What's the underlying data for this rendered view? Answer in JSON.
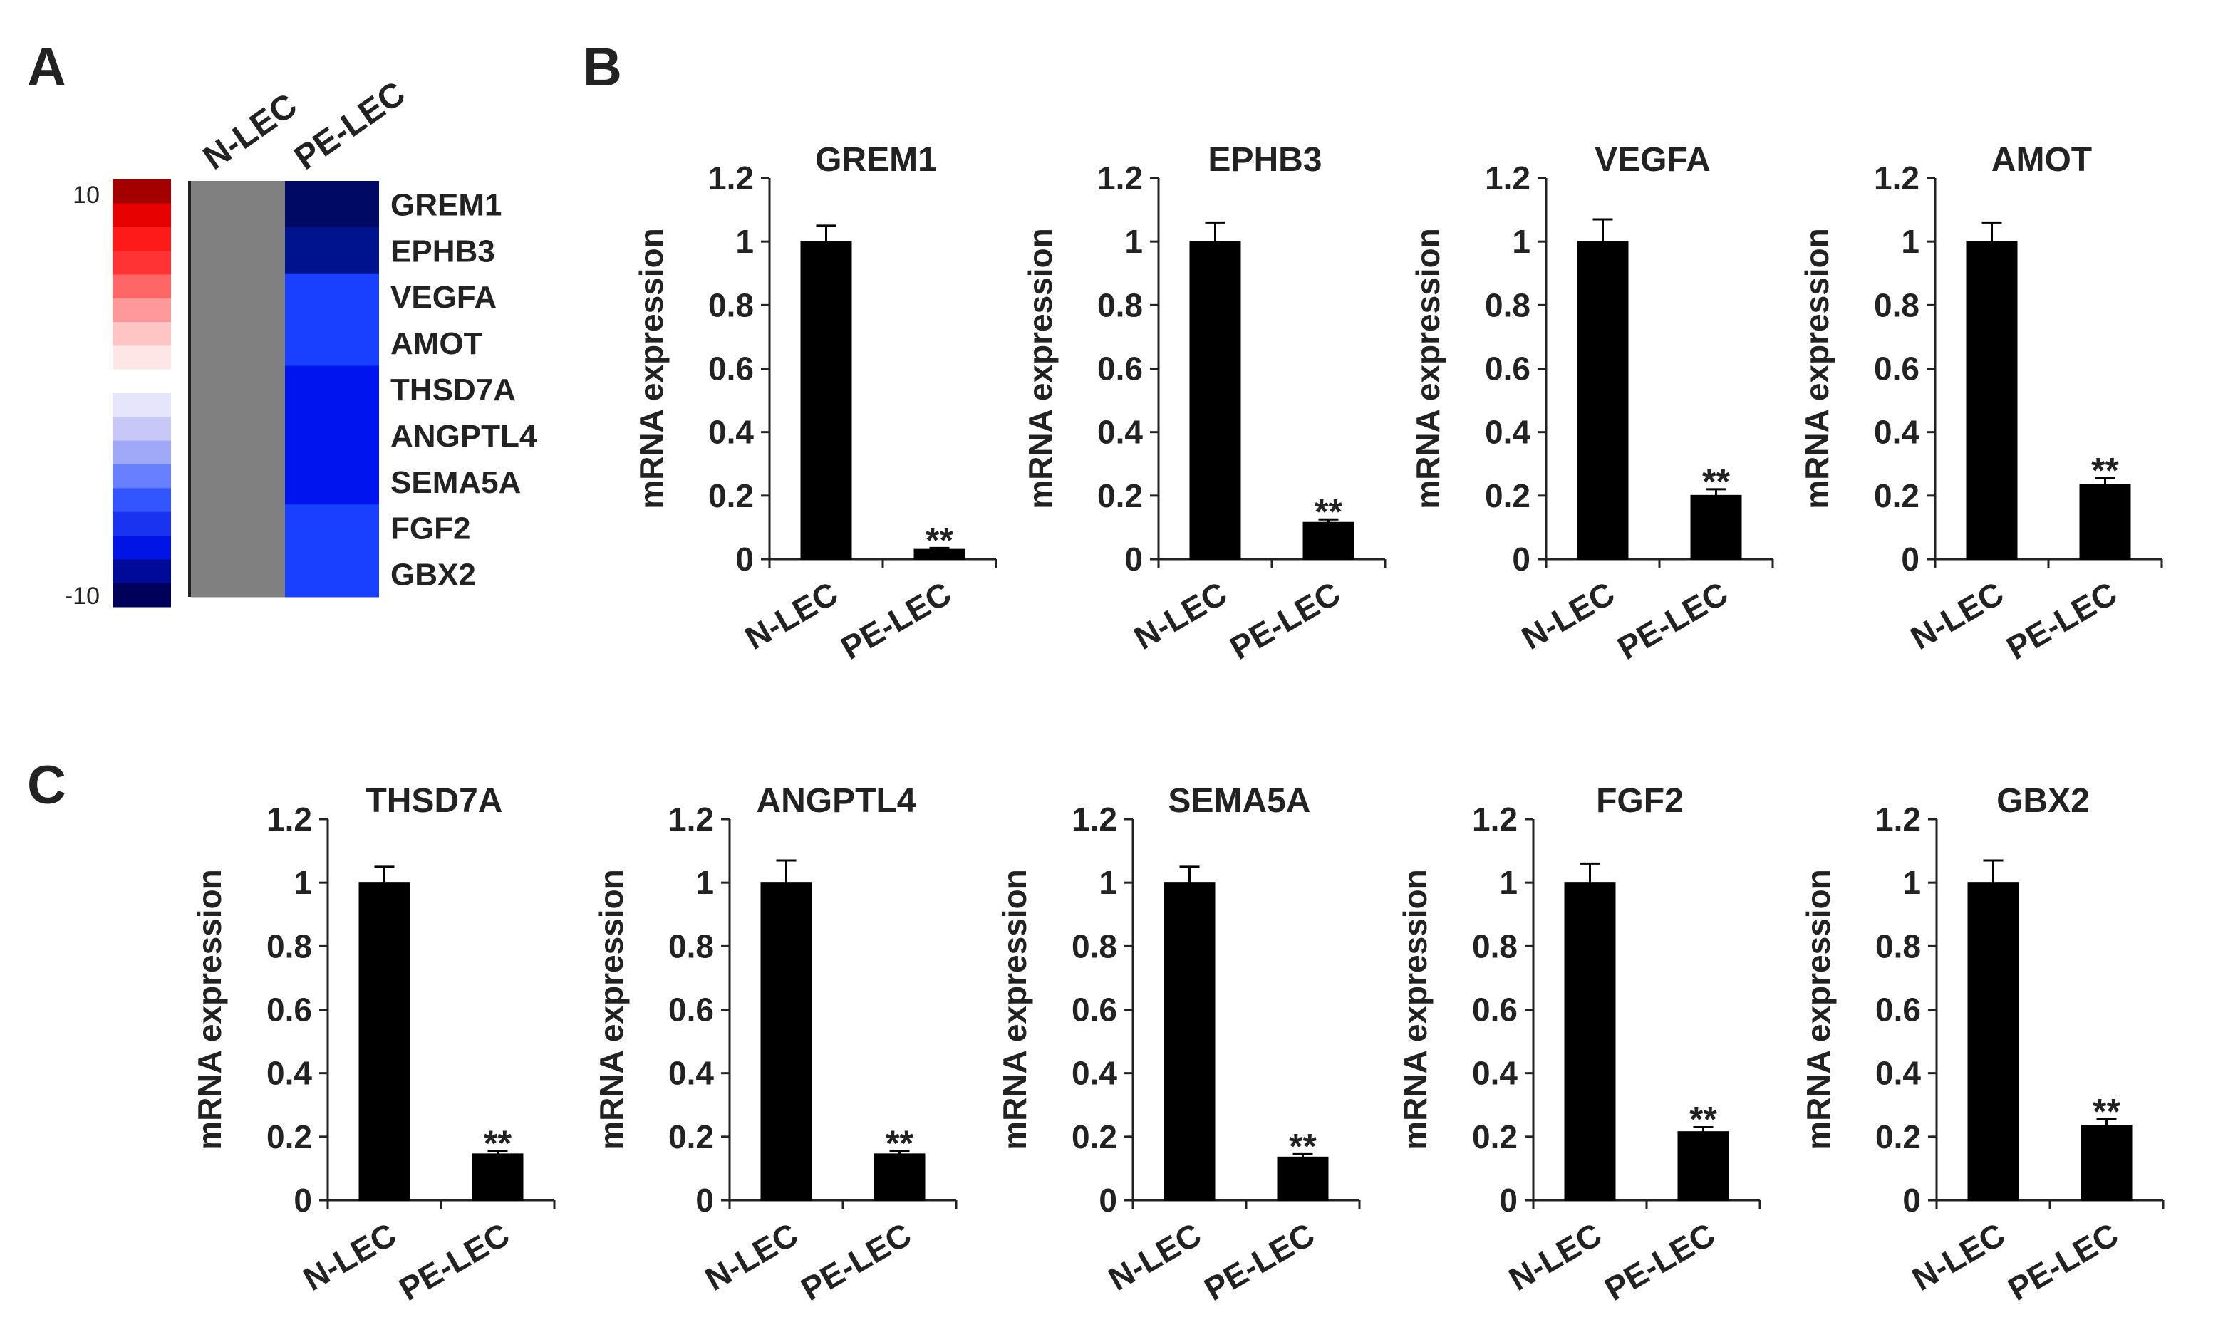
{
  "panel_labels": {
    "a": "A",
    "b": "B",
    "c": "C"
  },
  "heatmap": {
    "columns": [
      "N-LEC",
      "PE-LEC"
    ],
    "genes": [
      "GREM1",
      "EPHB3",
      "VEGFA",
      "AMOT",
      "THSD7A",
      "ANGPTL4",
      "SEMA5A",
      "FGF2",
      "GBX2"
    ],
    "n_lec_color": "#808080",
    "pe_lec_colors": [
      "#000a64",
      "#00138f",
      "#1a40ff",
      "#1a40ff",
      "#0014f0",
      "#0014f0",
      "#0014f0",
      "#1a40ff",
      "#1a40ff"
    ],
    "legend": {
      "max_label": "10",
      "min_label": "-10",
      "colors": [
        "#a50000",
        "#e60000",
        "#ff1a1a",
        "#ff3333",
        "#ff6666",
        "#ff9999",
        "#ffc4c4",
        "#ffe6e6",
        "#ffffff",
        "#e4e4fa",
        "#c8c8f8",
        "#a0a8f8",
        "#6680ff",
        "#3355ff",
        "#1a33f0",
        "#0014e6",
        "#000a99",
        "#00005a"
      ]
    }
  },
  "chart_data": [
    {
      "type": "bar",
      "panel": "B",
      "title": "GREM1",
      "categories": [
        "N-LEC",
        "PE-LEC"
      ],
      "values": [
        1.0,
        0.03
      ],
      "errors": [
        0.05,
        0.005
      ],
      "significance": [
        "",
        "**"
      ],
      "ylabel": "mRNA expression",
      "ylim": [
        0,
        1.2
      ],
      "yticks": [
        "0",
        "0.2",
        "0.4",
        "0.6",
        "0.8",
        "1",
        "1.2"
      ],
      "bar_color": "#000000"
    },
    {
      "type": "bar",
      "panel": "B",
      "title": "EPHB3",
      "categories": [
        "N-LEC",
        "PE-LEC"
      ],
      "values": [
        1.0,
        0.115
      ],
      "errors": [
        0.06,
        0.01
      ],
      "significance": [
        "",
        "**"
      ],
      "ylabel": "mRNA expression",
      "ylim": [
        0,
        1.2
      ],
      "yticks": [
        "0",
        "0.2",
        "0.4",
        "0.6",
        "0.8",
        "1",
        "1.2"
      ],
      "bar_color": "#000000"
    },
    {
      "type": "bar",
      "panel": "B",
      "title": "VEGFA",
      "categories": [
        "N-LEC",
        "PE-LEC"
      ],
      "values": [
        1.0,
        0.2
      ],
      "errors": [
        0.07,
        0.02
      ],
      "significance": [
        "",
        "**"
      ],
      "ylabel": "mRNA expression",
      "ylim": [
        0,
        1.2
      ],
      "yticks": [
        "0",
        "0.2",
        "0.4",
        "0.6",
        "0.8",
        "1",
        "1.2"
      ],
      "bar_color": "#000000"
    },
    {
      "type": "bar",
      "panel": "B",
      "title": "AMOT",
      "categories": [
        "N-LEC",
        "PE-LEC"
      ],
      "values": [
        1.0,
        0.235
      ],
      "errors": [
        0.06,
        0.02
      ],
      "significance": [
        "",
        "**"
      ],
      "ylabel": "mRNA expression",
      "ylim": [
        0,
        1.2
      ],
      "yticks": [
        "0",
        "0.2",
        "0.4",
        "0.6",
        "0.8",
        "1",
        "1.2"
      ],
      "bar_color": "#000000"
    },
    {
      "type": "bar",
      "panel": "C",
      "title": "THSD7A",
      "categories": [
        "N-LEC",
        "PE-LEC"
      ],
      "values": [
        1.0,
        0.145
      ],
      "errors": [
        0.05,
        0.01
      ],
      "significance": [
        "",
        "**"
      ],
      "ylabel": "mRNA expression",
      "ylim": [
        0,
        1.2
      ],
      "yticks": [
        "0",
        "0.2",
        "0.4",
        "0.6",
        "0.8",
        "1",
        "1.2"
      ],
      "bar_color": "#000000"
    },
    {
      "type": "bar",
      "panel": "C",
      "title": "ANGPTL4",
      "categories": [
        "N-LEC",
        "PE-LEC"
      ],
      "values": [
        1.0,
        0.145
      ],
      "errors": [
        0.07,
        0.01
      ],
      "significance": [
        "",
        "**"
      ],
      "ylabel": "mRNA expression",
      "ylim": [
        0,
        1.2
      ],
      "yticks": [
        "0",
        "0.2",
        "0.4",
        "0.6",
        "0.8",
        "1",
        "1.2"
      ],
      "bar_color": "#000000"
    },
    {
      "type": "bar",
      "panel": "C",
      "title": "SEMA5A",
      "categories": [
        "N-LEC",
        "PE-LEC"
      ],
      "values": [
        1.0,
        0.135
      ],
      "errors": [
        0.05,
        0.01
      ],
      "significance": [
        "",
        "**"
      ],
      "ylabel": "mRNA expression",
      "ylim": [
        0,
        1.2
      ],
      "yticks": [
        "0",
        "0.2",
        "0.4",
        "0.6",
        "0.8",
        "1",
        "1.2"
      ],
      "bar_color": "#000000"
    },
    {
      "type": "bar",
      "panel": "C",
      "title": "FGF2",
      "categories": [
        "N-LEC",
        "PE-LEC"
      ],
      "values": [
        1.0,
        0.215
      ],
      "errors": [
        0.06,
        0.015
      ],
      "significance": [
        "",
        "**"
      ],
      "ylabel": "mRNA expression",
      "ylim": [
        0,
        1.2
      ],
      "yticks": [
        "0",
        "0.2",
        "0.4",
        "0.6",
        "0.8",
        "1",
        "1.2"
      ],
      "bar_color": "#000000"
    },
    {
      "type": "bar",
      "panel": "C",
      "title": "GBX2",
      "categories": [
        "N-LEC",
        "PE-LEC"
      ],
      "values": [
        1.0,
        0.235
      ],
      "errors": [
        0.07,
        0.02
      ],
      "significance": [
        "",
        "**"
      ],
      "ylabel": "mRNA expression",
      "ylim": [
        0,
        1.2
      ],
      "yticks": [
        "0",
        "0.2",
        "0.4",
        "0.6",
        "0.8",
        "1",
        "1.2"
      ],
      "bar_color": "#000000"
    }
  ]
}
